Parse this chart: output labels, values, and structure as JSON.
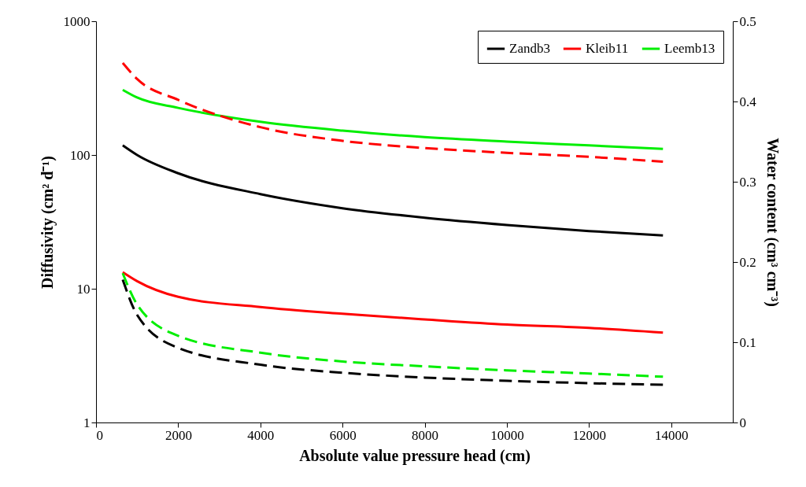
{
  "chart_data": {
    "type": "line",
    "xlabel": "Absolute value pressure head (cm)",
    "ylabel": "Diffusivity (cm² d⁻¹)",
    "y2label": "Water content (cm³ cm⁻³)",
    "x": [
      650,
      1000,
      2000,
      4000,
      6000,
      8000,
      10000,
      12000,
      13800
    ],
    "xlim": [
      0,
      15500
    ],
    "xticks": [
      0,
      2000,
      4000,
      6000,
      8000,
      10000,
      12000,
      14000
    ],
    "ylim": [
      1,
      1000
    ],
    "yticks": [
      1,
      10,
      100,
      1000
    ],
    "log": "y",
    "y2lim": [
      0,
      0.5
    ],
    "y2ticks": [
      0,
      0.1,
      0.2,
      0.3,
      0.4,
      0.5
    ],
    "legend": "top right",
    "series": [
      {
        "name": "Zandb3",
        "color": "#000000",
        "line_style": "solid",
        "values": [
          118,
          100,
          73,
          51,
          40,
          34,
          30,
          27,
          25
        ]
      },
      {
        "name": "Kleib11",
        "color": "#ff0000",
        "line_style": "solid",
        "values": [
          13.3,
          11.4,
          8.7,
          7.3,
          6.5,
          5.9,
          5.4,
          5.1,
          4.7
        ]
      },
      {
        "name": "Leemb13",
        "color": "#00ee00",
        "line_style": "solid",
        "values": [
          307,
          269,
          225,
          177,
          152,
          136,
          126,
          118,
          111
        ]
      },
      {
        "color": "#000000",
        "line_style": "dashed",
        "axis": "y2",
        "values": [
          0.178,
          0.134,
          0.093,
          0.072,
          0.062,
          0.056,
          0.052,
          0.049,
          0.047
        ]
      },
      {
        "color": "#ff0000",
        "line_style": "dashed",
        "axis": "y2",
        "values": [
          0.448,
          0.428,
          0.402,
          0.368,
          0.351,
          0.342,
          0.336,
          0.331,
          0.325
        ]
      },
      {
        "color": "#00ee00",
        "line_style": "dashed",
        "axis": "y2",
        "values": [
          0.186,
          0.147,
          0.108,
          0.087,
          0.076,
          0.07,
          0.065,
          0.061,
          0.057
        ]
      }
    ]
  }
}
